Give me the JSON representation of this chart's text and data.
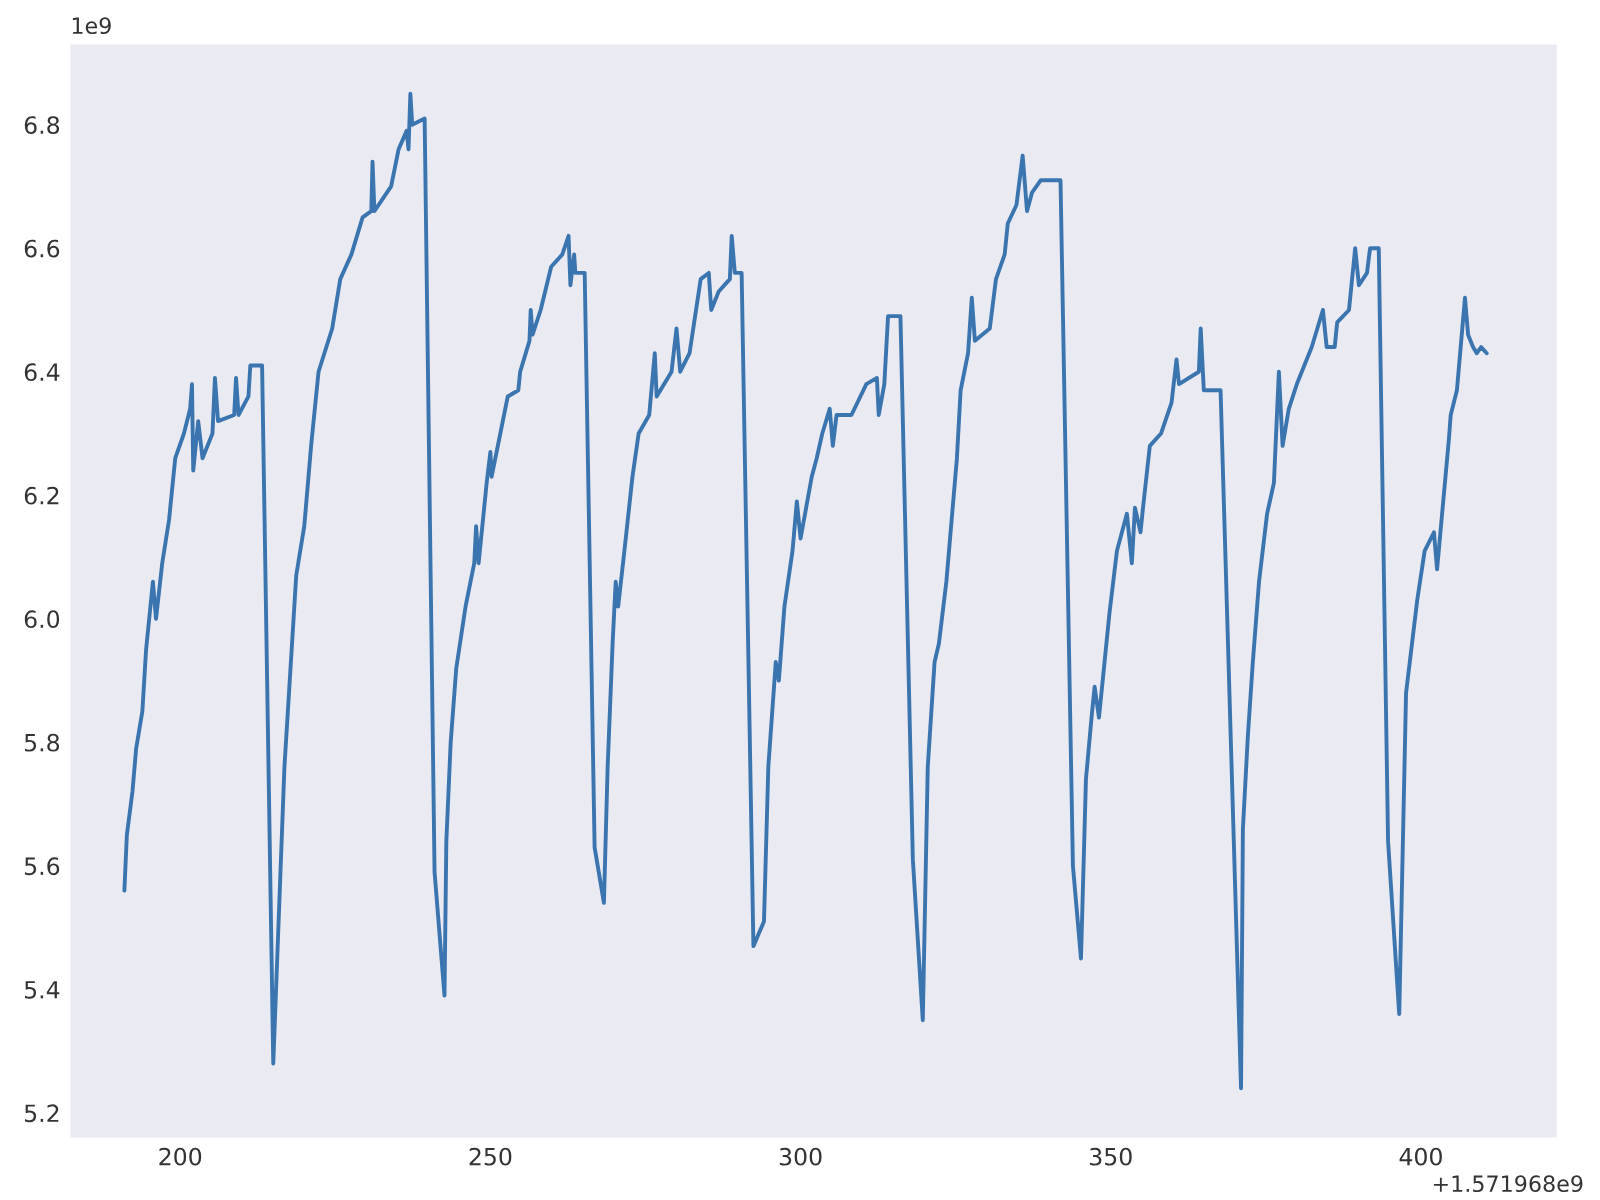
{
  "chart_data": {
    "type": "line",
    "x": [
      191.0,
      191.4,
      192.3,
      192.9,
      193.9,
      194.5,
      195.6,
      196.1,
      197.1,
      198.2,
      199.2,
      200.6,
      201.6,
      201.9,
      202.1,
      202.9,
      203.6,
      205.2,
      205.6,
      206.1,
      208.7,
      209.0,
      209.4,
      211.0,
      211.3,
      213.2,
      215.0,
      216.8,
      218.7,
      220.0,
      221.1,
      222.3,
      224.5,
      225.8,
      227.6,
      229.4,
      230.8,
      231.0,
      231.3,
      234.0,
      235.2,
      236.5,
      236.8,
      237.1,
      237.4,
      239.4,
      241.0,
      242.6,
      242.9,
      243.6,
      244.5,
      246.0,
      247.4,
      247.7,
      248.1,
      249.4,
      250.0,
      250.2,
      251.6,
      252.8,
      254.5,
      254.8,
      256.3,
      256.5,
      256.8,
      258.1,
      259.8,
      261.6,
      262.6,
      262.9,
      263.5,
      263.7,
      265.2,
      266.8,
      268.3,
      268.9,
      269.7,
      270.2,
      270.6,
      271.6,
      272.9,
      273.9,
      275.6,
      276.5,
      276.8,
      279.2,
      280.0,
      280.6,
      282.1,
      283.9,
      285.2,
      285.6,
      286.8,
      288.6,
      288.9,
      289.4,
      290.5,
      292.4,
      294.1,
      294.8,
      296.0,
      296.5,
      297.4,
      298.7,
      299.4,
      300.0,
      301.8,
      302.6,
      303.5,
      304.7,
      305.2,
      305.8,
      308.2,
      310.6,
      312.3,
      312.6,
      313.5,
      314.1,
      316.1,
      318.1,
      319.7,
      320.5,
      321.6,
      322.3,
      323.5,
      325.2,
      325.8,
      327.0,
      327.6,
      328.1,
      330.5,
      331.5,
      332.9,
      333.4,
      334.8,
      335.8,
      336.5,
      337.3,
      338.7,
      341.9,
      343.9,
      345.2,
      346.0,
      346.9,
      347.4,
      348.1,
      349.0,
      349.8,
      351.0,
      352.6,
      353.4,
      353.9,
      354.8,
      355.2,
      356.3,
      358.1,
      359.8,
      360.6,
      361.0,
      364.2,
      364.5,
      365.0,
      367.7,
      371.0,
      371.3,
      372.1,
      372.9,
      373.9,
      375.2,
      376.3,
      377.1,
      377.7,
      378.7,
      380.0,
      382.4,
      384.2,
      384.8,
      386.1,
      386.5,
      388.4,
      389.4,
      390.0,
      391.3,
      391.8,
      393.2,
      394.7,
      396.5,
      397.6,
      399.4,
      400.6,
      402.1,
      402.6,
      403.5,
      404.5,
      404.8,
      405.8,
      407.1,
      407.6,
      408.4,
      409.0,
      409.7,
      410.6
    ],
    "series": [
      {
        "color": "#3a75b0",
        "values": [
          5.56,
          5.65,
          5.72,
          5.79,
          5.85,
          5.95,
          6.06,
          6.0,
          6.09,
          6.16,
          6.26,
          6.3,
          6.34,
          6.38,
          6.24,
          6.32,
          6.26,
          6.3,
          6.39,
          6.32,
          6.33,
          6.39,
          6.33,
          6.36,
          6.41,
          6.41,
          5.28,
          5.76,
          6.07,
          6.15,
          6.28,
          6.4,
          6.47,
          6.55,
          6.59,
          6.65,
          6.66,
          6.74,
          6.66,
          6.7,
          6.76,
          6.79,
          6.76,
          6.85,
          6.8,
          6.81,
          5.59,
          5.39,
          5.64,
          5.8,
          5.92,
          6.02,
          6.09,
          6.15,
          6.09,
          6.22,
          6.27,
          6.23,
          6.3,
          6.36,
          6.37,
          6.4,
          6.45,
          6.5,
          6.46,
          6.5,
          6.57,
          6.59,
          6.62,
          6.54,
          6.59,
          6.56,
          6.56,
          5.63,
          5.54,
          5.76,
          5.96,
          6.06,
          6.02,
          6.11,
          6.23,
          6.3,
          6.33,
          6.43,
          6.36,
          6.4,
          6.47,
          6.4,
          6.43,
          6.55,
          6.56,
          6.5,
          6.53,
          6.55,
          6.62,
          6.56,
          6.56,
          5.47,
          5.51,
          5.76,
          5.93,
          5.9,
          6.02,
          6.11,
          6.19,
          6.13,
          6.23,
          6.26,
          6.3,
          6.34,
          6.28,
          6.33,
          6.33,
          6.38,
          6.39,
          6.33,
          6.38,
          6.49,
          6.49,
          5.61,
          5.35,
          5.76,
          5.93,
          5.96,
          6.06,
          6.26,
          6.37,
          6.43,
          6.52,
          6.45,
          6.47,
          6.55,
          6.59,
          6.64,
          6.67,
          6.75,
          6.66,
          6.69,
          6.71,
          6.71,
          5.6,
          5.45,
          5.74,
          5.84,
          5.89,
          5.84,
          5.93,
          6.01,
          6.11,
          6.17,
          6.09,
          6.18,
          6.14,
          6.18,
          6.28,
          6.3,
          6.35,
          6.42,
          6.38,
          6.4,
          6.47,
          6.37,
          6.37,
          5.24,
          5.66,
          5.81,
          5.93,
          6.06,
          6.17,
          6.22,
          6.4,
          6.28,
          6.34,
          6.38,
          6.44,
          6.5,
          6.44,
          6.44,
          6.48,
          6.5,
          6.6,
          6.54,
          6.56,
          6.6,
          6.6,
          5.64,
          5.36,
          5.88,
          6.03,
          6.11,
          6.14,
          6.08,
          6.18,
          6.29,
          6.33,
          6.37,
          6.52,
          6.46,
          6.44,
          6.43,
          6.44,
          6.43
        ]
      }
    ],
    "xlim": [
      182.3,
      421.9
    ],
    "ylim": [
      5.16,
      6.93
    ],
    "xticks": [
      200,
      250,
      300,
      350,
      400
    ],
    "yticks": [
      5.2,
      5.4,
      5.6,
      5.8,
      {
        "value": 6.0,
        "label": "6.0"
      },
      6.2,
      6.4,
      6.6,
      6.8
    ],
    "grid": false,
    "annotations": [
      "1e9",
      "+1.571968e9"
    ]
  }
}
